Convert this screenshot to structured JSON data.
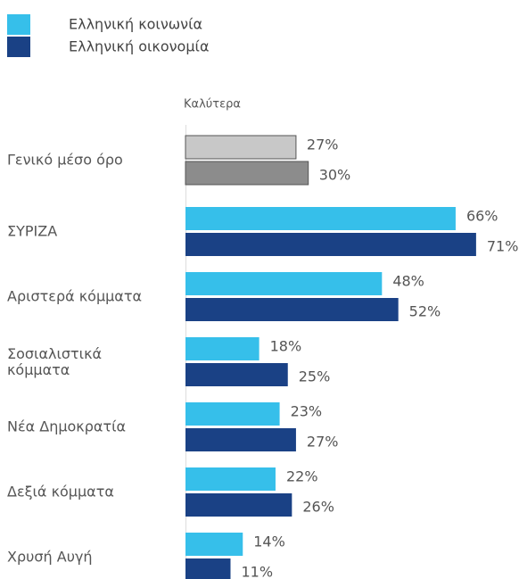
{
  "chart_data": {
    "type": "hbar",
    "axis_label": "Καλύτερα",
    "categories": [
      "Γενικό μέσο όρο",
      "ΣΥΡΙΖΑ",
      "Αριστερά κόμματα",
      "Σοσιαλιστικά κόμματα",
      "Νέα Δημοκρατία",
      "Δεξιά κόμματα",
      "Χρυσή Αυγή"
    ],
    "series": [
      {
        "name": "Ελληνική κοινωνία",
        "color": "#36bfea",
        "colors": [
          "#c8c8c8",
          "#36bfea",
          "#36bfea",
          "#36bfea",
          "#36bfea",
          "#36bfea",
          "#36bfea"
        ],
        "values": [
          27,
          66,
          48,
          18,
          23,
          22,
          14
        ],
        "value_labels": [
          "27%",
          "66%",
          "48%",
          "18%",
          "23%",
          "22%",
          "14%"
        ]
      },
      {
        "name": "Ελληνική οικονομία",
        "color": "#1a4185",
        "colors": [
          "#8c8c8c",
          "#1a4185",
          "#1a4185",
          "#1a4185",
          "#1a4185",
          "#1a4185",
          "#1a4185"
        ],
        "values": [
          30,
          71,
          52,
          25,
          27,
          26,
          11
        ],
        "value_labels": [
          "30%",
          "71%",
          "52%",
          "25%",
          "27%",
          "26%",
          "11%"
        ]
      }
    ],
    "xlim": [
      0,
      100
    ]
  }
}
